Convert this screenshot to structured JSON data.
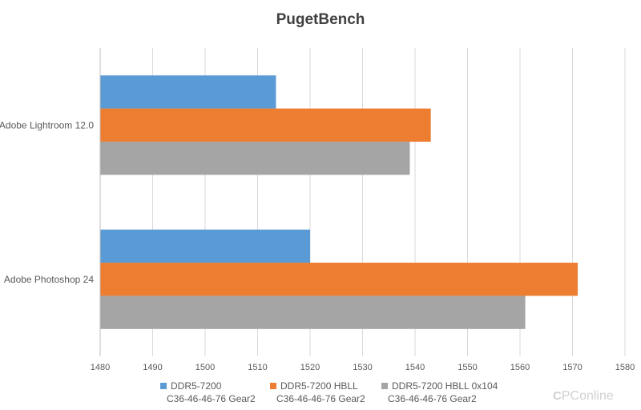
{
  "chart_data": {
    "type": "bar",
    "orientation": "horizontal",
    "title": "PugetBench",
    "categories": [
      "Adobe Lightroom 12.0",
      "Adobe Photoshop 24"
    ],
    "series": [
      {
        "name": "DDR5-7200 C36-46-46-76 Gear2",
        "name_lines": [
          "DDR5-7200",
          "C36-46-46-76 Gear2"
        ],
        "color": "#5b9bd5",
        "values": [
          1513.5,
          1520
        ]
      },
      {
        "name": "DDR5-7200 HBLL C36-46-46-76 Gear2",
        "name_lines": [
          "DDR5-7200 HBLL",
          "C36-46-46-76 Gear2"
        ],
        "color": "#ed7d31",
        "values": [
          1543,
          1571
        ]
      },
      {
        "name": "DDR5-7200 HBLL 0x104 C36-46-46-76 Gear2",
        "name_lines": [
          "DDR5-7200 HBLL 0x104",
          "C36-46-46-76 Gear2"
        ],
        "color": "#a5a5a5",
        "values": [
          1539,
          1561
        ]
      }
    ],
    "xlim": [
      1480,
      1580
    ],
    "xticks": [
      1480,
      1490,
      1500,
      1510,
      1520,
      1530,
      1540,
      1550,
      1560,
      1570,
      1580
    ],
    "grid": true,
    "legend_position": "bottom"
  },
  "watermark": {
    "icon": "C",
    "text": "PConline"
  }
}
